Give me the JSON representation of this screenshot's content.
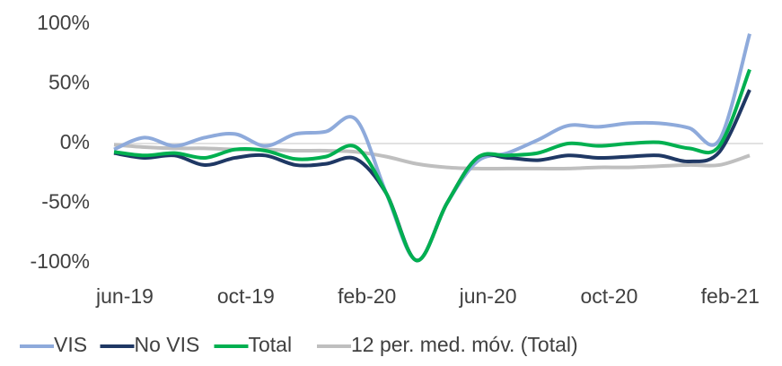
{
  "chart_data": {
    "type": "line",
    "categories": [
      "jun-19",
      null,
      null,
      null,
      "oct-19",
      null,
      null,
      null,
      "feb-20",
      null,
      null,
      null,
      "jun-20",
      null,
      null,
      null,
      "oct-20",
      null,
      null,
      null,
      "feb-21",
      null
    ],
    "series": [
      {
        "name": "VIS",
        "color": "#8eaadb",
        "values": [
          -5,
          5,
          -2,
          5,
          8,
          -2,
          8,
          10,
          20,
          -42,
          -98,
          -50,
          -15,
          -8,
          3,
          15,
          14,
          17,
          17,
          13,
          3,
          92
        ]
      },
      {
        "name": "No VIS",
        "color": "#1f3864",
        "values": [
          -8,
          -12,
          -10,
          -18,
          -12,
          -10,
          -18,
          -17,
          -13,
          -42,
          -98,
          -50,
          -12,
          -12,
          -14,
          -10,
          -12,
          -11,
          -10,
          -15,
          -7,
          45
        ]
      },
      {
        "name": "Total",
        "color": "#00b050",
        "values": [
          -7,
          -10,
          -8,
          -12,
          -5,
          -6,
          -13,
          -11,
          -3,
          -42,
          -98,
          -50,
          -12,
          -10,
          -8,
          0,
          -2,
          0,
          1,
          -4,
          -2,
          62
        ]
      },
      {
        "name": "12 per. med. móv. (Total)",
        "color": "#bfbfbf",
        "values": [
          -1,
          -3,
          -4,
          -4,
          -5,
          -5,
          -6,
          -6,
          -7,
          -11,
          -17,
          -20,
          -21,
          -21,
          -21,
          -21,
          -20,
          -20,
          -19,
          -18,
          -18,
          -10
        ]
      }
    ],
    "ylim": [
      -100,
      100
    ],
    "yticks": [
      {
        "value": -100,
        "label": "-100%"
      },
      {
        "value": -50,
        "label": "-50%"
      },
      {
        "value": 0,
        "label": "0%"
      },
      {
        "value": 50,
        "label": "50%"
      },
      {
        "value": 100,
        "label": "100%"
      }
    ],
    "grid": false,
    "legend": "bottom"
  }
}
